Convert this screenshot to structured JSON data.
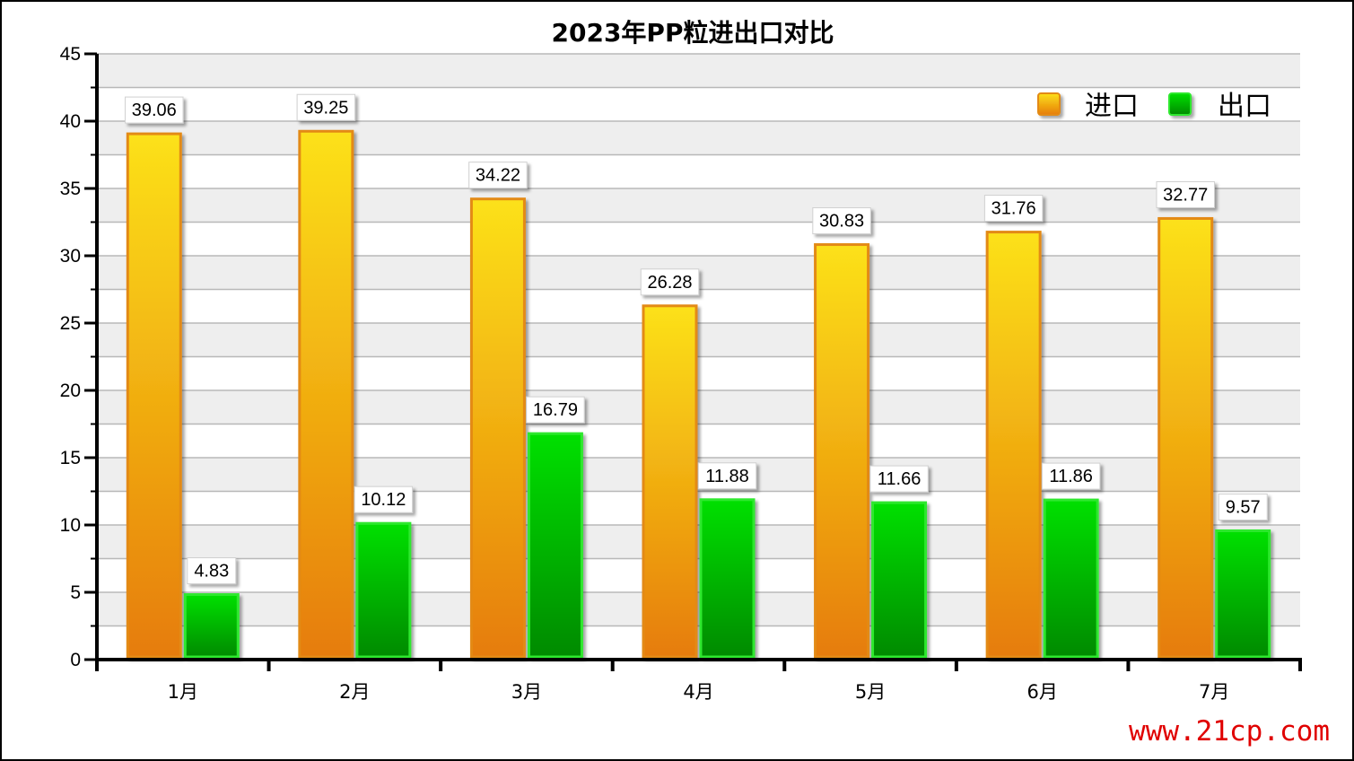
{
  "chart_data": {
    "type": "bar",
    "title": "2023年PP粒进出口对比",
    "categories": [
      "1月",
      "2月",
      "3月",
      "4月",
      "5月",
      "6月",
      "7月"
    ],
    "series": [
      {
        "name": "进口",
        "values": [
          39.06,
          39.25,
          34.22,
          26.28,
          30.83,
          31.76,
          32.77
        ]
      },
      {
        "name": "出口",
        "values": [
          4.83,
          10.12,
          16.79,
          11.88,
          11.66,
          11.86,
          9.57
        ]
      }
    ],
    "ylim": [
      0,
      45
    ],
    "yticks": [
      0,
      5,
      10,
      15,
      20,
      25,
      30,
      35,
      40,
      45
    ],
    "grid": true,
    "legend": "top-right",
    "xlabel": "",
    "ylabel": "",
    "colors": {
      "import_top": "#fce11a",
      "import_bottom": "#e67c08",
      "import_border": "#e38a12",
      "export_top": "#00e000",
      "export_bottom": "#008a00",
      "export_border": "#2ee82e",
      "band": "#eeeeee",
      "grid": "#b8b8b8"
    }
  },
  "watermark": "www.21cp.com"
}
